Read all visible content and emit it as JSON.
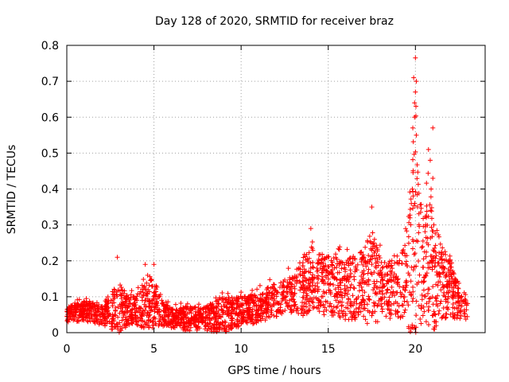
{
  "chart_data": {
    "type": "scatter",
    "title": "Day 128 of 2020, SRMTID for receiver braz",
    "xlabel": "GPS time / hours",
    "ylabel": "SRMTID / TECUs",
    "xlim": [
      0,
      24
    ],
    "ylim": [
      0,
      0.8
    ],
    "xticks": [
      0,
      5,
      10,
      15,
      20
    ],
    "yticks": [
      0,
      0.1,
      0.2,
      0.3,
      0.4,
      0.5,
      0.6,
      0.7,
      0.8
    ],
    "xtick_labels": [
      "0",
      "5",
      "10",
      "15",
      "20"
    ],
    "ytick_labels": [
      "0",
      "0.1",
      "0.2",
      "0.3",
      "0.4",
      "0.5",
      "0.6",
      "0.7",
      "0.8"
    ],
    "grid": true,
    "marker": "+",
    "marker_color": "#ff0000",
    "point_count": 2600,
    "envelope": {
      "hours": [
        0,
        1,
        2,
        3,
        3.5,
        4,
        4.5,
        5,
        5.5,
        6,
        7,
        8,
        9,
        10,
        11,
        12,
        13,
        13.5,
        14,
        15,
        16,
        17,
        17.5,
        18,
        19,
        19.5,
        19.8,
        20,
        20.2,
        20.5,
        20.8,
        21,
        21.5,
        22,
        22.5,
        23
      ],
      "typical": [
        0.05,
        0.06,
        0.05,
        0.07,
        0.06,
        0.06,
        0.08,
        0.08,
        0.05,
        0.04,
        0.04,
        0.04,
        0.05,
        0.06,
        0.07,
        0.09,
        0.11,
        0.13,
        0.14,
        0.13,
        0.12,
        0.13,
        0.15,
        0.12,
        0.12,
        0.15,
        0.22,
        0.27,
        0.22,
        0.18,
        0.2,
        0.17,
        0.14,
        0.12,
        0.08,
        0.07
      ],
      "spread": [
        0.03,
        0.04,
        0.04,
        0.1,
        0.06,
        0.06,
        0.1,
        0.1,
        0.05,
        0.04,
        0.05,
        0.05,
        0.07,
        0.06,
        0.06,
        0.07,
        0.08,
        0.12,
        0.13,
        0.12,
        0.12,
        0.14,
        0.2,
        0.12,
        0.12,
        0.15,
        0.4,
        0.5,
        0.3,
        0.2,
        0.28,
        0.25,
        0.15,
        0.12,
        0.06,
        0.05
      ]
    },
    "notable_points": [
      {
        "x": 20.0,
        "y": 0.765
      },
      {
        "x": 19.9,
        "y": 0.71
      },
      {
        "x": 20.05,
        "y": 0.7
      },
      {
        "x": 20.0,
        "y": 0.67
      },
      {
        "x": 19.95,
        "y": 0.64
      },
      {
        "x": 19.95,
        "y": 0.6
      },
      {
        "x": 19.85,
        "y": 0.57
      },
      {
        "x": 20.05,
        "y": 0.55
      },
      {
        "x": 20.75,
        "y": 0.51
      },
      {
        "x": 20.85,
        "y": 0.48
      },
      {
        "x": 21.0,
        "y": 0.57
      },
      {
        "x": 21.0,
        "y": 0.43
      },
      {
        "x": 20.9,
        "y": 0.4
      },
      {
        "x": 17.5,
        "y": 0.35
      },
      {
        "x": 14.0,
        "y": 0.29
      },
      {
        "x": 2.9,
        "y": 0.21
      },
      {
        "x": 4.5,
        "y": 0.19
      },
      {
        "x": 5.0,
        "y": 0.19
      }
    ]
  }
}
